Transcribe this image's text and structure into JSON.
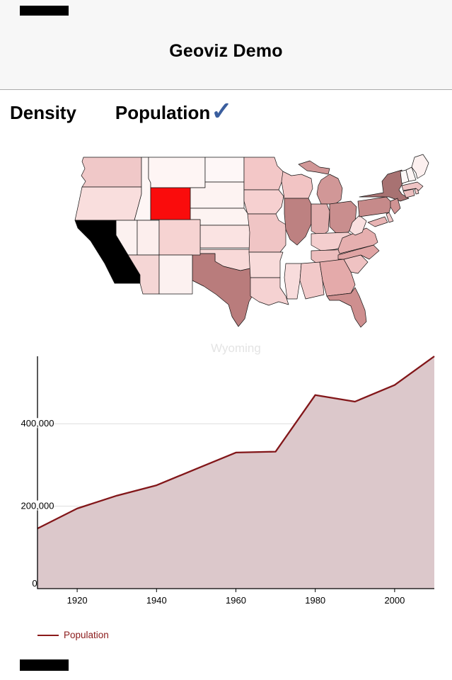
{
  "header": {
    "title": "Geoviz Demo"
  },
  "tabs": {
    "items": [
      {
        "label": "Density",
        "selected": false
      },
      {
        "label": "Population",
        "selected": true
      }
    ],
    "check_color": "#3A5E9E"
  },
  "map": {
    "selected_state": "Wyoming",
    "highlight_color": "#FA0C0C",
    "states": [
      {
        "id": "wa",
        "name": "Washington",
        "color": "#F0C8C8"
      },
      {
        "id": "or",
        "name": "Oregon",
        "color": "#F9DEDD"
      },
      {
        "id": "ca",
        "name": "California",
        "color": "#000000"
      },
      {
        "id": "id",
        "name": "Idaho",
        "color": "#FEF6F5"
      },
      {
        "id": "nv",
        "name": "Nevada",
        "color": "#FCF1F0"
      },
      {
        "id": "mt",
        "name": "Montana",
        "color": "#FEF5F4"
      },
      {
        "id": "wy",
        "name": "Wyoming",
        "color": "#FA0C0C"
      },
      {
        "id": "ut",
        "name": "Utah",
        "color": "#FCEEED"
      },
      {
        "id": "co",
        "name": "Colorado",
        "color": "#F6D3D2"
      },
      {
        "id": "az",
        "name": "Arizona",
        "color": "#F5D6D5"
      },
      {
        "id": "nm",
        "name": "New Mexico",
        "color": "#FCF1F0"
      },
      {
        "id": "nd",
        "name": "North Dakota",
        "color": "#FEF7F7"
      },
      {
        "id": "sd",
        "name": "South Dakota",
        "color": "#FDF3F2"
      },
      {
        "id": "ne",
        "name": "Nebraska",
        "color": "#FDF3F2"
      },
      {
        "id": "ks",
        "name": "Kansas",
        "color": "#FAE3E2"
      },
      {
        "id": "ok",
        "name": "Oklahoma",
        "color": "#F8D9D8"
      },
      {
        "id": "tx",
        "name": "Texas",
        "color": "#B97C7C"
      },
      {
        "id": "mn",
        "name": "Minnesota",
        "color": "#F3C7C7"
      },
      {
        "id": "ia",
        "name": "Iowa",
        "color": "#F6D0D0"
      },
      {
        "id": "mo",
        "name": "Missouri",
        "color": "#F0C5C5"
      },
      {
        "id": "ar",
        "name": "Arkansas",
        "color": "#F8DBDA"
      },
      {
        "id": "la",
        "name": "Louisiana",
        "color": "#F5D2D2"
      },
      {
        "id": "wi",
        "name": "Wisconsin",
        "color": "#F2C4C4"
      },
      {
        "id": "il",
        "name": "Illinois",
        "color": "#BD8181"
      },
      {
        "id": "mi",
        "name": "Michigan",
        "color": "#D19797"
      },
      {
        "id": "in",
        "name": "Indiana",
        "color": "#E2AEAE"
      },
      {
        "id": "oh",
        "name": "Ohio",
        "color": "#C98E8E"
      },
      {
        "id": "ky",
        "name": "Kentucky",
        "color": "#F4CECE"
      },
      {
        "id": "tn",
        "name": "Tennessee",
        "color": "#ECBDBD"
      },
      {
        "id": "ms",
        "name": "Mississippi",
        "color": "#F8DCDC"
      },
      {
        "id": "al",
        "name": "Alabama",
        "color": "#F2C9C9"
      },
      {
        "id": "ga",
        "name": "Georgia",
        "color": "#E4AAAA"
      },
      {
        "id": "fl",
        "name": "Florida",
        "color": "#CE8F8F"
      },
      {
        "id": "sc",
        "name": "South Carolina",
        "color": "#EFC2C2"
      },
      {
        "id": "nc",
        "name": "North Carolina",
        "color": "#E0A4A4"
      },
      {
        "id": "va",
        "name": "Virginia",
        "color": "#E6AFAF"
      },
      {
        "id": "wv",
        "name": "West Virginia",
        "color": "#F9E0E0"
      },
      {
        "id": "pa",
        "name": "Pennsylvania",
        "color": "#C68A8A"
      },
      {
        "id": "ny",
        "name": "New York",
        "color": "#A87272"
      },
      {
        "id": "nj",
        "name": "New Jersey",
        "color": "#D09393"
      },
      {
        "id": "md",
        "name": "Maryland",
        "color": "#E8B4B4"
      },
      {
        "id": "de",
        "name": "Delaware",
        "color": "#F0C6C6"
      },
      {
        "id": "ct",
        "name": "Connecticut",
        "color": "#ECBFBF"
      },
      {
        "id": "ri",
        "name": "Rhode Island",
        "color": "#F0C8C8"
      },
      {
        "id": "ma",
        "name": "Massachusetts",
        "color": "#EFC4C4"
      },
      {
        "id": "vt",
        "name": "Vermont",
        "color": "#FEF8F7"
      },
      {
        "id": "nh",
        "name": "New Hampshire",
        "color": "#FDF5F4"
      },
      {
        "id": "me",
        "name": "Maine",
        "color": "#FCF0EF"
      }
    ]
  },
  "chart_data": {
    "type": "area",
    "title": "Wyoming",
    "title_color": "#E4E4E4",
    "x": [
      1910,
      1920,
      1930,
      1940,
      1950,
      1960,
      1970,
      1980,
      1990,
      2000,
      2010
    ],
    "series": [
      {
        "name": "Population",
        "values": [
          145965,
          194402,
          225565,
          250742,
          290529,
          330066,
          332416,
          469557,
          453588,
          493782,
          563626
        ]
      }
    ],
    "xlim": [
      1910,
      2010
    ],
    "ylim": [
      0,
      563626
    ],
    "x_ticks": [
      1920,
      1940,
      1960,
      1980,
      2000
    ],
    "y_ticks": [
      {
        "value": 0,
        "label": "0"
      },
      {
        "value": 200000,
        "label": "200,000"
      },
      {
        "value": 400000,
        "label": "400,000"
      }
    ],
    "line_color": "#821619",
    "fill_color": "#DCC8CB",
    "grid_color": "#DDDDDD",
    "axis_color": "#000000"
  },
  "legend": {
    "label": "Population",
    "color": "#8B1A1A"
  }
}
